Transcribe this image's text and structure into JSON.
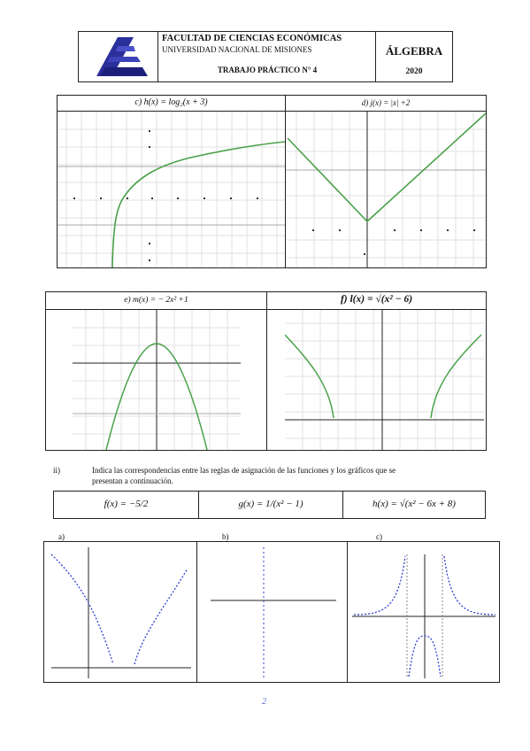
{
  "header": {
    "faculty": "FACULTAD DE CIENCIAS ECONÓMICAS",
    "university": "UNIVERSIDAD NACIONAL DE MISIONES",
    "practical": "TRABAJO PRÁCTICO N° 4",
    "subject": "ÁLGEBRA",
    "year": "2020"
  },
  "graphs_top": {
    "c_label": "c) h(x) = log₂(x + 3)",
    "d_label": "d) j(x) = |x| +2"
  },
  "graphs_mid": {
    "e_label": "e) m(x) = − 2x² +1",
    "f_label": "f) l(x) = √(x² − 6)"
  },
  "item_ii": {
    "number": "ii)",
    "text_line1": "Indica las correspondencias entre las reglas de asignación de las funciones y los gráficos que se",
    "text_line2": "presentan a continuación."
  },
  "functions": {
    "f": "f(x) = −5/2",
    "g": "g(x) = 1/(x² − 1)",
    "h": "h(x) = √(x² − 6x + 8)"
  },
  "bottom_graphs": {
    "a_label": "a)",
    "b_label": "b)",
    "c_label": "c)"
  },
  "page_number": "2"
}
